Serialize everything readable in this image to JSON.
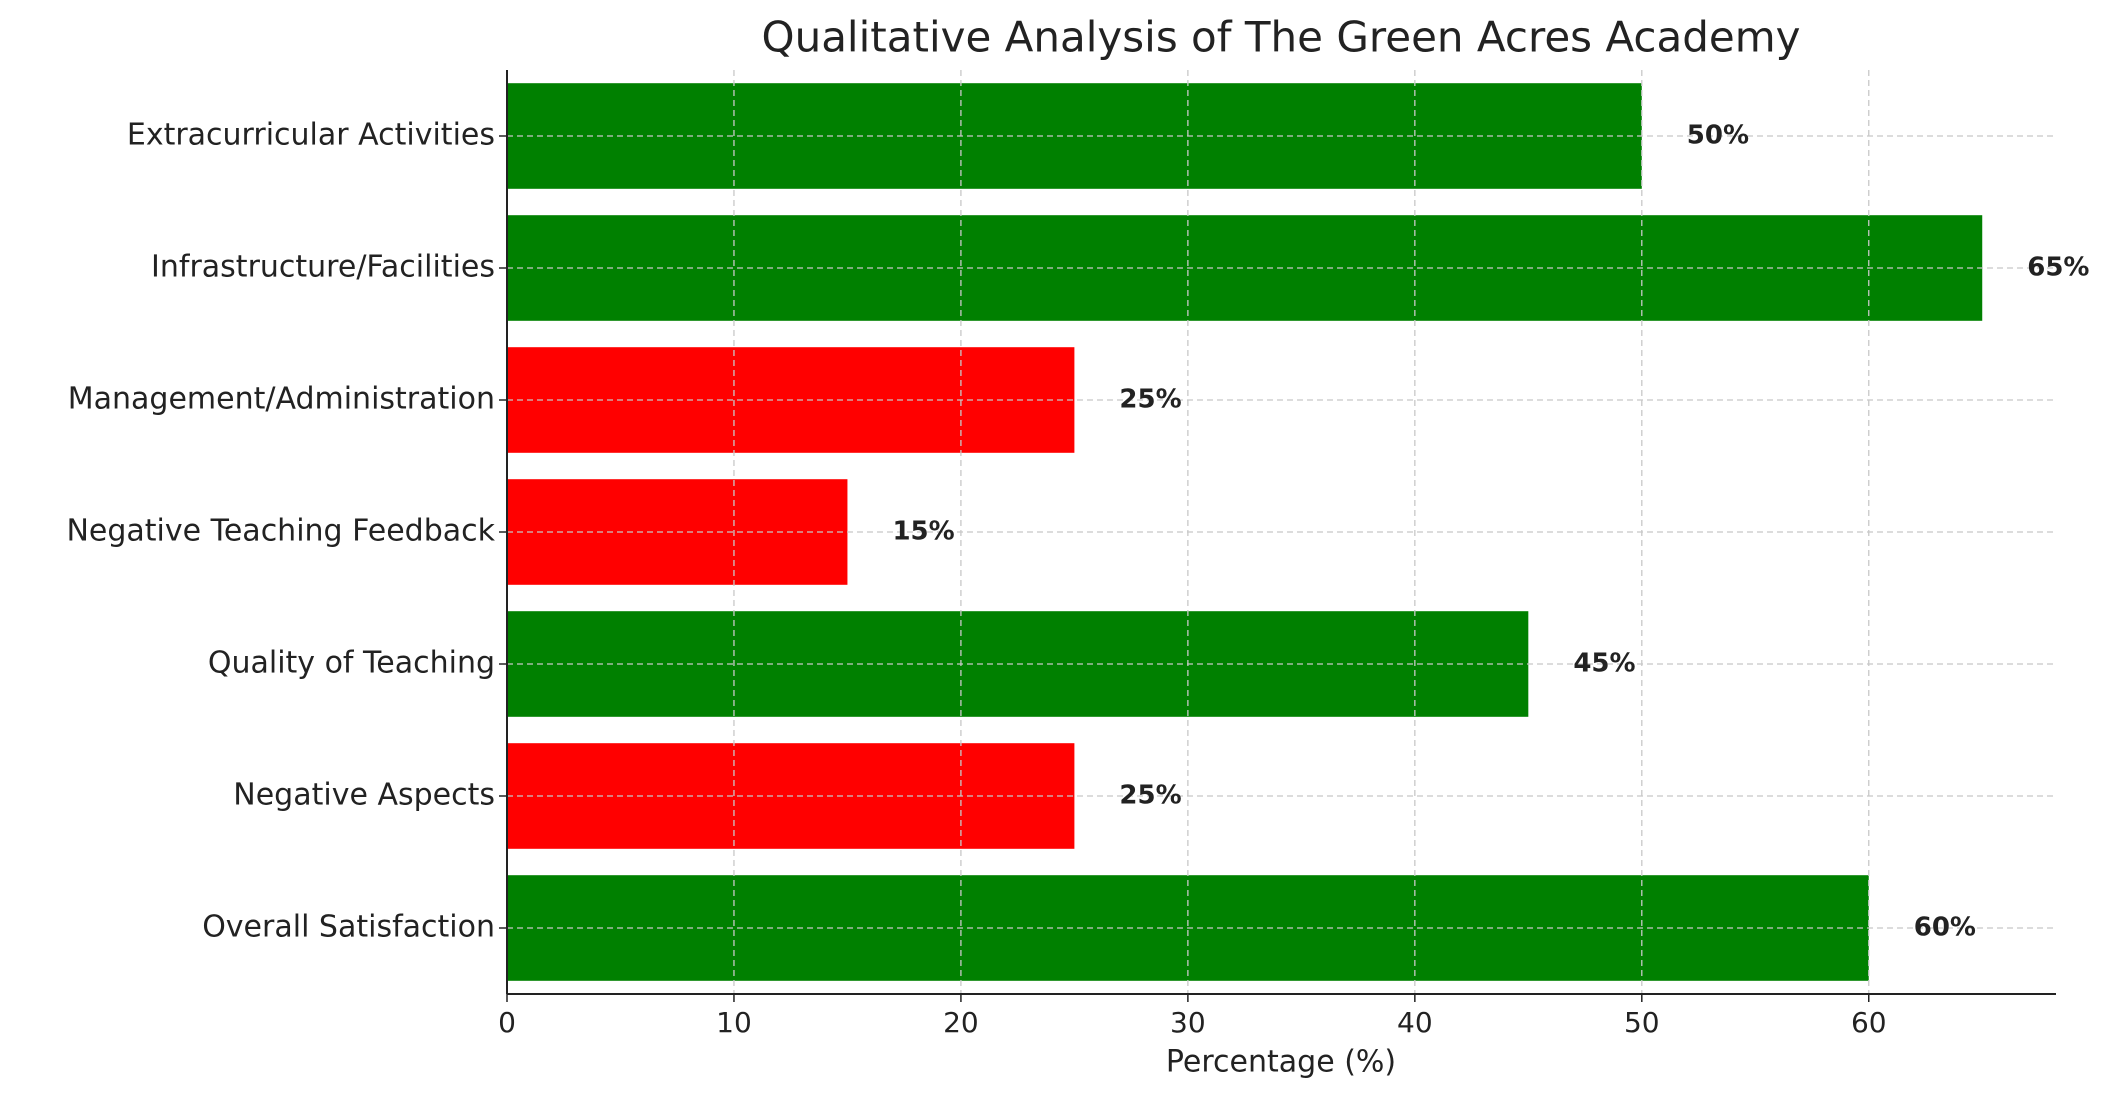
{
  "chart_data": {
    "type": "barh",
    "title": "Qualitative Analysis of The Green Acres Academy",
    "x_label": "Percentage (%)",
    "categories": [
      "Overall Satisfaction",
      "Negative Aspects",
      "Quality of Teaching",
      "Negative Teaching Feedback",
      "Management/Administration",
      "Infrastructure/Facilities",
      "Extracurricular Activities"
    ],
    "values": [
      60,
      25,
      45,
      15,
      25,
      65,
      50
    ],
    "value_labels": [
      "60%",
      "25%",
      "45%",
      "15%",
      "25%",
      "65%",
      "50%"
    ],
    "colors": [
      "#008000",
      "#ff0000",
      "#008000",
      "#ff0000",
      "#ff0000",
      "#008000",
      "#008000"
    ],
    "xlim": [
      0,
      68.25
    ],
    "xticks": [
      0,
      10,
      20,
      30,
      40,
      50,
      60
    ],
    "grid": true
  }
}
